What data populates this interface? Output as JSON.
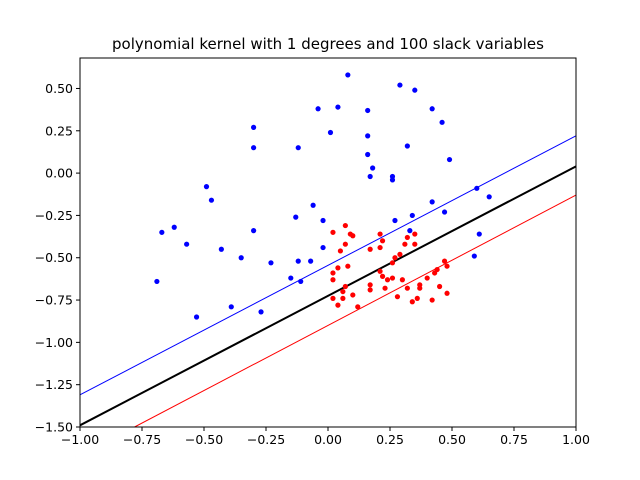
{
  "chart_data": {
    "type": "scatter",
    "title": "polynomial kernel with 1 degrees and 100 slack variables",
    "xlabel": "",
    "ylabel": "",
    "xlim": [
      -1.0,
      1.0
    ],
    "ylim": [
      -1.5,
      0.68
    ],
    "x_ticks": [
      "−1.00",
      "−0.75",
      "−0.50",
      "−0.25",
      "0.00",
      "0.25",
      "0.50",
      "0.75",
      "1.00"
    ],
    "x_tick_values": [
      -1.0,
      -0.75,
      -0.5,
      -0.25,
      0.0,
      0.25,
      0.5,
      0.75,
      1.0
    ],
    "y_ticks": [
      "−1.50",
      "−1.25",
      "−1.00",
      "−0.75",
      "−0.50",
      "−0.25",
      "0.00",
      "0.25",
      "0.50"
    ],
    "y_tick_values": [
      -1.5,
      -1.25,
      -1.0,
      -0.75,
      -0.5,
      -0.25,
      0.0,
      0.25,
      0.5
    ],
    "grid": false,
    "lines": [
      {
        "color": "#0000ff",
        "width": 1,
        "points": [
          [
            -1.0,
            -1.31
          ],
          [
            1.0,
            0.22
          ]
        ]
      },
      {
        "color": "#000000",
        "width": 2,
        "points": [
          [
            -1.0,
            -1.49
          ],
          [
            1.0,
            0.04
          ]
        ]
      },
      {
        "color": "#ff0000",
        "width": 1,
        "points": [
          [
            -0.78,
            -1.5
          ],
          [
            1.0,
            -0.13
          ]
        ]
      }
    ],
    "series": [
      {
        "color": "#0000ff",
        "points": [
          [
            0.08,
            0.58
          ],
          [
            0.29,
            0.52
          ],
          [
            0.35,
            0.49
          ],
          [
            -0.04,
            0.38
          ],
          [
            0.04,
            0.39
          ],
          [
            0.42,
            0.38
          ],
          [
            0.16,
            0.37
          ],
          [
            0.46,
            0.3
          ],
          [
            -0.3,
            0.27
          ],
          [
            0.01,
            0.24
          ],
          [
            0.16,
            0.22
          ],
          [
            -0.3,
            0.15
          ],
          [
            -0.12,
            0.15
          ],
          [
            0.32,
            0.16
          ],
          [
            0.16,
            0.11
          ],
          [
            0.49,
            0.08
          ],
          [
            0.18,
            0.03
          ],
          [
            0.17,
            -0.02
          ],
          [
            0.26,
            -0.02
          ],
          [
            0.26,
            -0.04
          ],
          [
            -0.49,
            -0.08
          ],
          [
            0.6,
            -0.09
          ],
          [
            0.65,
            -0.14
          ],
          [
            -0.47,
            -0.16
          ],
          [
            0.42,
            -0.17
          ],
          [
            -0.06,
            -0.19
          ],
          [
            0.47,
            -0.23
          ],
          [
            0.34,
            -0.25
          ],
          [
            -0.13,
            -0.26
          ],
          [
            0.27,
            -0.28
          ],
          [
            -0.02,
            -0.28
          ],
          [
            -0.62,
            -0.32
          ],
          [
            -0.67,
            -0.35
          ],
          [
            -0.3,
            -0.34
          ],
          [
            0.33,
            -0.34
          ],
          [
            0.61,
            -0.36
          ],
          [
            -0.57,
            -0.42
          ],
          [
            -0.02,
            -0.44
          ],
          [
            -0.43,
            -0.45
          ],
          [
            0.59,
            -0.49
          ],
          [
            -0.35,
            -0.5
          ],
          [
            -0.12,
            -0.52
          ],
          [
            -0.07,
            -0.52
          ],
          [
            -0.23,
            -0.53
          ],
          [
            -0.15,
            -0.62
          ],
          [
            -0.69,
            -0.64
          ],
          [
            -0.11,
            -0.64
          ],
          [
            -0.39,
            -0.79
          ],
          [
            -0.27,
            -0.82
          ],
          [
            -0.53,
            -0.85
          ]
        ]
      },
      {
        "color": "#ff0000",
        "points": [
          [
            0.07,
            -0.31
          ],
          [
            0.02,
            -0.35
          ],
          [
            0.09,
            -0.36
          ],
          [
            0.1,
            -0.37
          ],
          [
            0.21,
            -0.36
          ],
          [
            0.35,
            -0.36
          ],
          [
            0.32,
            -0.38
          ],
          [
            0.22,
            -0.4
          ],
          [
            0.07,
            -0.42
          ],
          [
            0.35,
            -0.42
          ],
          [
            0.31,
            -0.42
          ],
          [
            0.17,
            -0.45
          ],
          [
            0.21,
            -0.44
          ],
          [
            0.05,
            -0.46
          ],
          [
            0.29,
            -0.48
          ],
          [
            0.27,
            -0.5
          ],
          [
            0.47,
            -0.52
          ],
          [
            0.26,
            -0.53
          ],
          [
            0.48,
            -0.55
          ],
          [
            0.08,
            -0.55
          ],
          [
            0.04,
            -0.56
          ],
          [
            0.44,
            -0.57
          ],
          [
            0.21,
            -0.58
          ],
          [
            0.02,
            -0.59
          ],
          [
            0.43,
            -0.59
          ],
          [
            0.22,
            -0.61
          ],
          [
            0.26,
            -0.62
          ],
          [
            0.4,
            -0.62
          ],
          [
            0.02,
            -0.63
          ],
          [
            0.24,
            -0.63
          ],
          [
            0.3,
            -0.63
          ],
          [
            0.17,
            -0.66
          ],
          [
            0.37,
            -0.66
          ],
          [
            0.07,
            -0.67
          ],
          [
            0.45,
            -0.67
          ],
          [
            0.23,
            -0.68
          ],
          [
            0.17,
            -0.69
          ],
          [
            0.32,
            -0.68
          ],
          [
            0.37,
            -0.68
          ],
          [
            0.06,
            -0.7
          ],
          [
            0.48,
            -0.71
          ],
          [
            0.1,
            -0.72
          ],
          [
            0.28,
            -0.73
          ],
          [
            0.02,
            -0.74
          ],
          [
            0.06,
            -0.74
          ],
          [
            0.36,
            -0.74
          ],
          [
            0.42,
            -0.75
          ],
          [
            0.34,
            -0.76
          ],
          [
            0.04,
            -0.78
          ],
          [
            0.12,
            -0.79
          ]
        ]
      }
    ]
  }
}
